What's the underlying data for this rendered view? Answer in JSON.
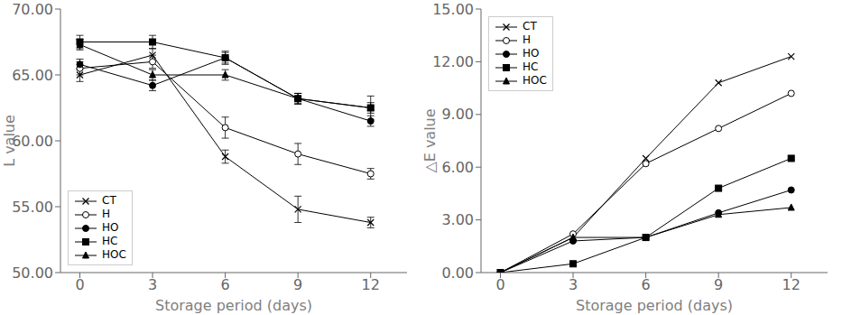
{
  "chart_data": [
    {
      "type": "line",
      "x": [
        0,
        3,
        6,
        9,
        12
      ],
      "xlim": [
        -0.8,
        13.5
      ],
      "xticks": [
        0,
        3,
        6,
        9,
        12
      ],
      "ylim": [
        50.0,
        70.0
      ],
      "yticks": [
        {
          "value": 50.0,
          "label": "50.00"
        },
        {
          "value": 55.0,
          "label": "55.00"
        },
        {
          "value": 60.0,
          "label": "60.00"
        },
        {
          "value": 65.0,
          "label": "65.00"
        },
        {
          "value": 70.0,
          "label": "70.00"
        }
      ],
      "xlabel": "Storage period (days)",
      "ylabel": "L value",
      "legend": "lower left",
      "grid": false,
      "series": [
        {
          "name": "CT",
          "color": "#000000",
          "marker": "x",
          "values": [
            65.0,
            66.5,
            58.8,
            54.8,
            53.8
          ],
          "errors": [
            0.5,
            0.5,
            0.5,
            1.0,
            0.4
          ]
        },
        {
          "name": "H",
          "color": "#000000",
          "marker": "open_circle",
          "values": [
            65.5,
            66.0,
            61.0,
            59.0,
            57.5
          ],
          "errors": [
            0.5,
            0.5,
            0.8,
            0.8,
            0.4
          ]
        },
        {
          "name": "HO",
          "color": "#000000",
          "marker": "circle",
          "values": [
            65.8,
            64.2,
            66.3,
            63.2,
            61.5
          ],
          "errors": [
            0.4,
            0.4,
            0.5,
            0.4,
            0.4
          ]
        },
        {
          "name": "HC",
          "color": "#000000",
          "marker": "square",
          "values": [
            67.5,
            67.5,
            66.3,
            63.2,
            62.5
          ],
          "errors": [
            0.5,
            0.5,
            0.4,
            0.4,
            0.9
          ]
        },
        {
          "name": "HOC",
          "color": "#000000",
          "marker": "triangle",
          "values": [
            67.3,
            65.0,
            65.0,
            63.2,
            62.5
          ],
          "errors": [
            0.4,
            0.4,
            0.4,
            0.4,
            0.4
          ]
        }
      ]
    },
    {
      "type": "line",
      "x": [
        0,
        3,
        6,
        9,
        12
      ],
      "xlim": [
        -0.8,
        13.5
      ],
      "xticks": [
        0,
        3,
        6,
        9,
        12
      ],
      "ylim": [
        0.0,
        15.0
      ],
      "yticks": [
        {
          "value": 0.0,
          "label": "0.00"
        },
        {
          "value": 3.0,
          "label": "3.00"
        },
        {
          "value": 6.0,
          "label": "6.00"
        },
        {
          "value": 9.0,
          "label": "9.00"
        },
        {
          "value": 12.0,
          "label": "12.00"
        },
        {
          "value": 15.0,
          "label": "15.00"
        }
      ],
      "xlabel": "Storage period (days)",
      "ylabel": "△E value",
      "legend": "upper left",
      "grid": false,
      "series": [
        {
          "name": "CT",
          "color": "#000000",
          "marker": "x",
          "values": [
            0.0,
            2.0,
            6.5,
            10.8,
            12.3
          ]
        },
        {
          "name": "H",
          "color": "#000000",
          "marker": "open_circle",
          "values": [
            0.0,
            2.2,
            6.2,
            8.2,
            10.2
          ]
        },
        {
          "name": "HO",
          "color": "#000000",
          "marker": "circle",
          "values": [
            0.0,
            1.8,
            2.0,
            3.4,
            4.7
          ]
        },
        {
          "name": "HC",
          "color": "#000000",
          "marker": "square",
          "values": [
            0.0,
            0.5,
            2.0,
            4.8,
            6.5
          ]
        },
        {
          "name": "HOC",
          "color": "#000000",
          "marker": "triangle",
          "values": [
            0.0,
            2.0,
            2.0,
            3.3,
            3.7
          ]
        }
      ]
    }
  ]
}
